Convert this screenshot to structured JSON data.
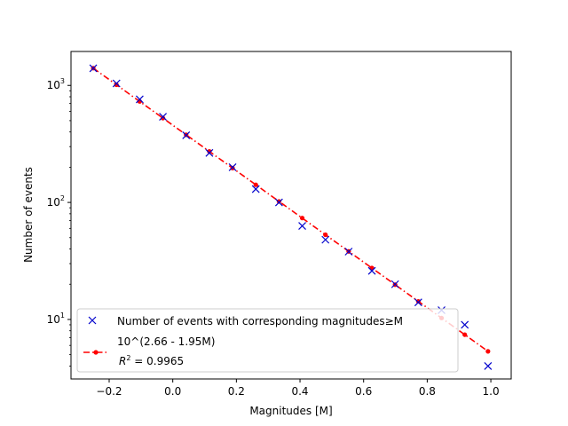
{
  "chart_data": {
    "type": "scatter",
    "xlabel": "Magnitudes [M]",
    "ylabel": "Number of events",
    "xlim": [
      -0.32,
      1.064
    ],
    "ylim": [
      3.1,
      1950
    ],
    "yscale": "log",
    "grid": false,
    "legend_position": "lower-left",
    "x_ticks": [
      -0.2,
      0.0,
      0.2,
      0.4,
      0.6,
      0.8,
      1.0
    ],
    "x_tick_labels": [
      "−0.2",
      "0.0",
      "0.2",
      "0.4",
      "0.6",
      "0.8",
      "1.0"
    ],
    "y_ticks": [
      {
        "value": 10,
        "base": "10",
        "exp": "1"
      },
      {
        "value": 100,
        "base": "10",
        "exp": "2"
      },
      {
        "value": 1000,
        "base": "10",
        "exp": "3"
      }
    ],
    "series": [
      {
        "name": "Number of events with corresponding magnitudes≥M",
        "kind": "scatter",
        "marker": "x",
        "color": "#0000cc",
        "x": [
          -0.25,
          -0.177,
          -0.104,
          -0.031,
          0.042,
          0.115,
          0.188,
          0.261,
          0.334,
          0.407,
          0.48,
          0.553,
          0.626,
          0.699,
          0.772,
          0.845,
          0.918,
          0.991
        ],
        "y": [
          1400,
          1040,
          760,
          540,
          375,
          265,
          200,
          130,
          100,
          63,
          48,
          38,
          26,
          20,
          14,
          12,
          9,
          4
        ]
      },
      {
        "name": "10^(2.66 - 1.95M)",
        "name_line2": "R",
        "name_line2_sup": "2",
        "name_line2_rest": " = 0.9965",
        "kind": "line",
        "marker": "dot",
        "line_style": "dash-dot",
        "color": "#ff0000",
        "intercept": 2.66,
        "slope": -1.95,
        "x": [
          -0.25,
          -0.177,
          -0.104,
          -0.031,
          0.042,
          0.115,
          0.188,
          0.261,
          0.334,
          0.407,
          0.48,
          0.553,
          0.626,
          0.699,
          0.772,
          0.845,
          0.918,
          0.991
        ]
      }
    ]
  }
}
